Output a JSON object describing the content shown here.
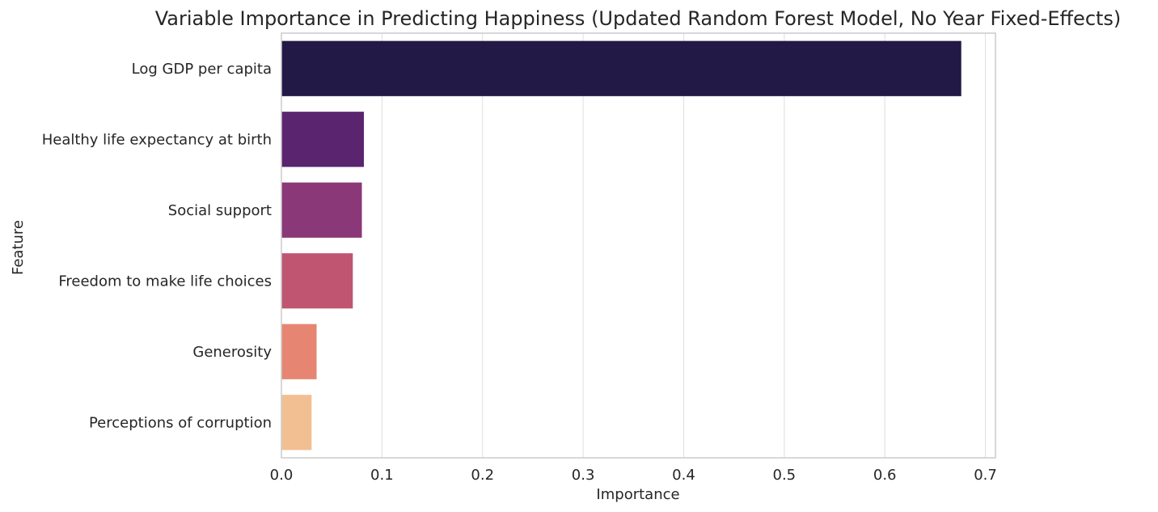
{
  "chart_data": {
    "type": "bar",
    "orientation": "horizontal",
    "title": "Variable Importance in Predicting Happiness (Updated Random Forest Model, No Year Fixed-Effects)",
    "xlabel": "Importance",
    "ylabel": "Feature",
    "categories": [
      "Log GDP per capita",
      "Healthy life expectancy at birth",
      "Social support",
      "Freedom to make life choices",
      "Generosity",
      "Perceptions of corruption"
    ],
    "values": [
      0.676,
      0.082,
      0.08,
      0.071,
      0.035,
      0.03
    ],
    "colors": [
      "#221947",
      "#5a246f",
      "#8a3878",
      "#c05571",
      "#e68672",
      "#f1bf92"
    ],
    "xlim": [
      0,
      0.71
    ],
    "xticks": [
      0.0,
      0.1,
      0.2,
      0.3,
      0.4,
      0.5,
      0.6,
      0.7
    ],
    "xtick_labels": [
      "0.0",
      "0.1",
      "0.2",
      "0.3",
      "0.4",
      "0.5",
      "0.6",
      "0.7"
    ],
    "grid": "vertical",
    "legend": "none"
  }
}
